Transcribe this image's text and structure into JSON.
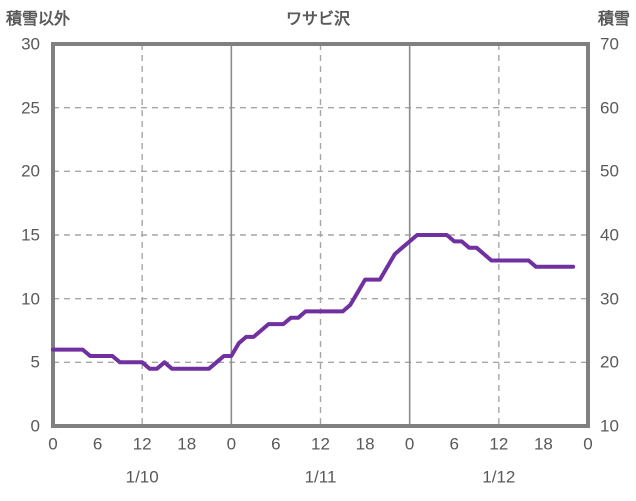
{
  "title": "ワサビ沢",
  "colors": {
    "line": "#7030A0",
    "text": "#595959",
    "frame": "#808080",
    "grid_dashed": "#A6A6A6",
    "grid_solid": "#8C8C8C",
    "background": "#FFFFFF"
  },
  "left_axis": {
    "label": "積雪以外",
    "tick_labels": [
      "30",
      "25",
      "20",
      "15",
      "10",
      "5",
      "0"
    ],
    "tick_values": [
      30,
      25,
      20,
      15,
      10,
      5,
      0
    ]
  },
  "right_axis": {
    "label": "積雪",
    "tick_labels": [
      "70",
      "60",
      "50",
      "40",
      "30",
      "20",
      "10"
    ],
    "tick_values": [
      70,
      60,
      50,
      40,
      30,
      20,
      10
    ]
  },
  "x_axis": {
    "hour_tick_labels": [
      "0",
      "6",
      "12",
      "18",
      "0",
      "6",
      "12",
      "18",
      "0",
      "6",
      "12",
      "18",
      "0"
    ],
    "hour_tick_positions": [
      0,
      6,
      12,
      18,
      24,
      30,
      36,
      42,
      48,
      54,
      60,
      66,
      72
    ],
    "date_labels": [
      "1/10",
      "1/11",
      "1/12"
    ],
    "date_center_hours": [
      12,
      36,
      60
    ]
  },
  "chart_data": {
    "type": "line",
    "title": "ワサビ沢",
    "left_ylim": [
      0,
      30
    ],
    "right_ylim": [
      10,
      70
    ],
    "x_range_hours": [
      0,
      72
    ],
    "grid": {
      "h_dashed_left_values": [
        5,
        10,
        15,
        20,
        25
      ],
      "v_dashed_hours": [
        12,
        36,
        60
      ],
      "v_solid_hours": [
        24,
        48
      ],
      "legend": "none"
    },
    "series": [
      {
        "name": "積雪",
        "axis": "right",
        "color": "#7030A0",
        "x_start_hour": 0,
        "x_step_hours": 1,
        "hours": [
          0,
          1,
          2,
          3,
          4,
          5,
          6,
          7,
          8,
          9,
          10,
          11,
          12,
          13,
          14,
          15,
          16,
          17,
          18,
          19,
          20,
          21,
          22,
          23,
          24,
          25,
          26,
          27,
          28,
          29,
          30,
          31,
          32,
          33,
          34,
          35,
          36,
          37,
          38,
          39,
          40,
          41,
          42,
          43,
          44,
          45,
          46,
          47,
          48,
          49,
          50,
          51,
          52,
          53,
          54,
          55,
          56,
          57,
          58,
          59,
          60,
          61,
          62,
          63,
          64,
          65,
          66,
          67,
          68,
          69,
          70
        ],
        "values": [
          22,
          22,
          22,
          22,
          22,
          21,
          21,
          21,
          21,
          20,
          20,
          20,
          20,
          19,
          19,
          20,
          19,
          19,
          19,
          19,
          19,
          19,
          20,
          21,
          21,
          23,
          24,
          24,
          25,
          26,
          26,
          26,
          27,
          27,
          28,
          28,
          28,
          28,
          28,
          28,
          29,
          31,
          33,
          33,
          33,
          35,
          37,
          38,
          39,
          40,
          40,
          40,
          40,
          40,
          39,
          39,
          38,
          38,
          37,
          36,
          36,
          36,
          36,
          36,
          36,
          35,
          35,
          35,
          35,
          35,
          35
        ]
      }
    ]
  }
}
